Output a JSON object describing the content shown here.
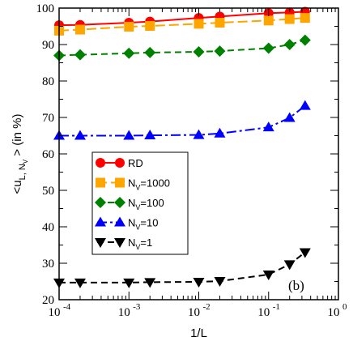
{
  "chart_data": {
    "type": "line",
    "xlabel": "1/L",
    "ylabel": "<u_{L, N_V}> (in %)",
    "xscale": "log",
    "xlim": [
      0.0001,
      1
    ],
    "ylim": [
      20,
      100
    ],
    "x_ticks": [
      {
        "value": 0.0001,
        "base": "10",
        "exp": "-4"
      },
      {
        "value": 0.001,
        "base": "10",
        "exp": "-3"
      },
      {
        "value": 0.01,
        "base": "10",
        "exp": "-2"
      },
      {
        "value": 0.1,
        "base": "10",
        "exp": "-1"
      },
      {
        "value": 1,
        "base": "10",
        "exp": "0"
      }
    ],
    "y_ticks": [
      20,
      30,
      40,
      50,
      60,
      70,
      80,
      90,
      100
    ],
    "annotation": "(b)",
    "legend_position": "left-middle",
    "x": [
      0.0001,
      0.0002,
      0.001,
      0.002,
      0.01,
      0.02,
      0.1,
      0.2,
      0.333
    ],
    "series": [
      {
        "name": "RD",
        "label_parts": [
          "RD",
          "",
          ""
        ],
        "marker": "circle",
        "color": "#ff0000",
        "dash": "",
        "values": [
          95.3,
          95.4,
          96.0,
          96.3,
          97.3,
          97.7,
          98.6,
          98.8,
          99.0
        ]
      },
      {
        "name": "N_V=1000",
        "label_parts": [
          "N",
          "V",
          "=1000"
        ],
        "marker": "square",
        "color": "#ffa500",
        "dash": "12,5",
        "values": [
          93.8,
          94.1,
          94.9,
          95.1,
          95.7,
          96.0,
          96.6,
          97.0,
          97.3
        ]
      },
      {
        "name": "N_V=100",
        "label_parts": [
          "N",
          "V",
          "=100"
        ],
        "marker": "diamond",
        "color": "#008000",
        "dash": "8,5",
        "values": [
          87.0,
          87.2,
          87.6,
          87.8,
          88.0,
          88.2,
          89.0,
          90.0,
          91.2
        ]
      },
      {
        "name": "N_V=10",
        "label_parts": [
          "N",
          "V",
          "=10"
        ],
        "marker": "triangle-up",
        "color": "#0000ff",
        "dash": "12,4,3,4",
        "values": [
          65.0,
          65.0,
          65.0,
          65.1,
          65.2,
          65.6,
          67.3,
          69.9,
          73.2
        ]
      },
      {
        "name": "N_V=1",
        "label_parts": [
          "N",
          "V",
          "=1"
        ],
        "marker": "triangle-down",
        "color": "#000000",
        "dash": "8,5",
        "values": [
          24.7,
          24.7,
          24.7,
          24.8,
          24.9,
          25.1,
          26.9,
          29.7,
          33.0
        ]
      }
    ]
  }
}
